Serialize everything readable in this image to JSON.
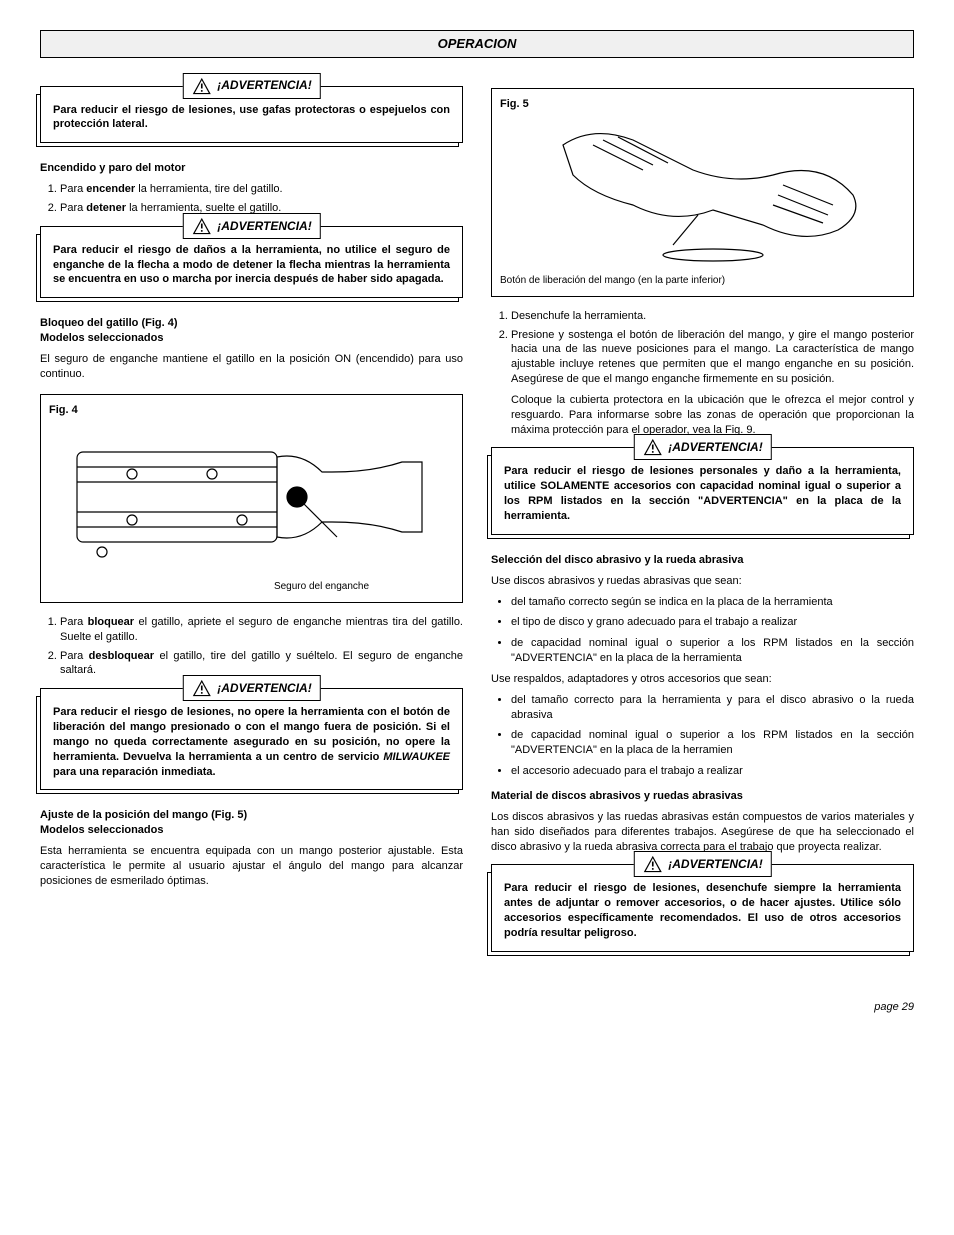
{
  "section_title": "OPERACION",
  "warnings": {
    "w1": {
      "header": "¡ADVERTENCIA!",
      "body": "Para reducir el riesgo de lesiones, use gafas protectoras o espejuelos con protección lateral."
    },
    "w2": {
      "header": "¡ADVERTENCIA!",
      "body": "Para reducir el riesgo de daños a la herramienta, no utilice el seguro de enganche de la flecha a modo de detener la flecha mientras la herramienta se encuentra en uso o marcha por inercia después de haber sido apagada."
    },
    "w3": {
      "header": "¡ADVERTENCIA!",
      "body_html": "Para reducir el riesgo de lesiones, no opere la herramienta con el botón de liberación del mango presionado o con el mango fuera de posición. Si el mango no queda correctamente asegurado en su posición, no opere la herramienta. Devuelva la herramienta a un centro de servicio <i>MILWAUKEE</i> para una reparación inmediata."
    },
    "w4": {
      "header": "¡ADVERTENCIA!",
      "body": "Para reducir el riesgo de lesiones personales y daño a la herramienta, utilice SOLAMENTE accesorios con capacidad nominal igual o superior a los RPM listados en la sección \"ADVERTENCIA\" en la placa de la herramienta."
    },
    "w5": {
      "header": "¡ADVERTENCIA!",
      "body": "Para reducir el riesgo de lesiones, desenchufe siempre la herramienta antes de adjuntar o remover accesorios, o de hacer ajustes. Utilice sólo accesorios específicamente recomendados. El uso de otros accesorios podría resultar peligroso."
    }
  },
  "left": {
    "h_motor": "Encendido y paro del motor",
    "motor_steps": {
      "s1_html": "Para <b>encender</b> la herramienta, tire del gatillo.",
      "s2_html": "Para <b>detener</b> la herramienta, suelte el gatillo."
    },
    "h_bloqueo1": "Bloqueo del gatillo (Fig. 4)",
    "h_bloqueo2": "Modelos seleccionados",
    "p_bloqueo": "El seguro de enganche mantiene el gatillo en la posición ON (encendido) para uso continuo.",
    "fig4_label": "Fig. 4",
    "fig4_caption": "Seguro del enganche",
    "lock_steps": {
      "s1_html": "Para <b>bloquear</b> el gatillo, apriete el seguro de enganche mientras tira del gatillo. Suelte el gatillo.",
      "s2_html": "Para <b>desbloquear</b> el gatillo, tire del gatillo y suéltelo. El seguro de enganche saltará."
    },
    "h_ajuste1": "Ajuste de la posición del mango (Fig. 5)",
    "h_ajuste2": "Modelos seleccionados",
    "p_ajuste": "Esta herramienta se encuentra equipada con un mango posterior ajustable. Esta característica le permite al usuario ajustar el ángulo del mango para alcanzar posiciones de esmerilado óptimas."
  },
  "right": {
    "fig5_label": "Fig. 5",
    "fig5_caption": "Botón de liberación del mango (en la parte inferior)",
    "mango_steps": {
      "s1": "Desenchufe la herramienta.",
      "s2": "Presione y sostenga el botón de liberación del mango, y gire el mango posterior hacia una de las nueve posiciones para el mango. La característica de mango ajustable incluye retenes que permiten que el mango enganche en su posición. Asegúrese de que el mango enganche firmemente en su posición.",
      "after": "Coloque la cubierta protectora en la ubicación que le ofrezca el mejor control y resguardo. Para informarse sobre las zonas de operación que proporcionan la máxima protección para el operador, vea la Fig. 9."
    },
    "h_seleccion": "Selección del disco abrasivo y la rueda abrasiva",
    "p_seleccion": "Use discos abrasivos y ruedas abrasivas que sean:",
    "list1": {
      "i1": "del tamaño correcto según se indica en la placa de la herramienta",
      "i2": "el tipo de disco y grano adecuado para el trabajo a realizar",
      "i3": "de capacidad nominal igual o superior a los RPM listados en la sección \"ADVERTENCIA\" en la placa de la herramienta"
    },
    "p_respaldos": "Use respaldos, adaptadores y otros accesorios que sean:",
    "list2": {
      "i1": "del tamaño correcto para la herramienta y para el disco abrasivo o la rueda abrasiva",
      "i2": "de capacidad nominal igual o superior a los RPM listados en la sección \"ADVERTENCIA\" en la placa de la herramien",
      "i3": "el accesorio adecuado para el trabajo a realizar"
    },
    "h_material": "Material de discos abrasivos y ruedas abrasivas",
    "p_material": "Los discos abrasivos y las ruedas abrasivas están compuestos de varios materiales y han sido diseñados para diferentes trabajos. Asegúrese de que ha seleccionado el disco abrasivo y la rueda abrasiva correcta para el trabajo que proyecta realizar."
  },
  "footer": "page 29",
  "colors": {
    "text": "#000000",
    "background": "#ffffff",
    "title_bar_bg": "#f0f0f0",
    "border": "#000000"
  },
  "typography": {
    "body_fontsize_pt": 8,
    "title_fontsize_pt": 10,
    "font_family": "Arial, Helvetica, sans-serif"
  }
}
